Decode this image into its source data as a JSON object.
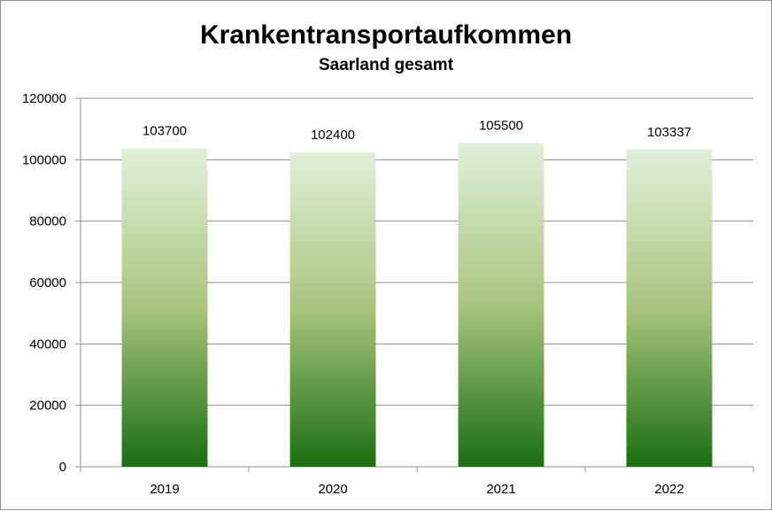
{
  "chart_data": {
    "type": "bar",
    "title": "Krankentransportaufkommen",
    "subtitle": "Saarland gesamt",
    "categories": [
      "2019",
      "2020",
      "2021",
      "2022"
    ],
    "values": [
      103700,
      102400,
      105500,
      103337
    ],
    "data_labels": [
      "103700",
      "102400",
      "105500",
      "103337"
    ],
    "ylim": [
      0,
      120000
    ],
    "yticks": [
      0,
      20000,
      40000,
      60000,
      80000,
      100000,
      120000
    ],
    "ytick_labels": [
      "0",
      "20000",
      "40000",
      "60000",
      "80000",
      "100000",
      "120000"
    ],
    "grid": true,
    "legend": "none",
    "bar_gradient": {
      "top": "#e2efda",
      "middle": "#a9c47f",
      "bottom": "#1a6e12"
    },
    "grid_color": "#8c8c8c"
  }
}
